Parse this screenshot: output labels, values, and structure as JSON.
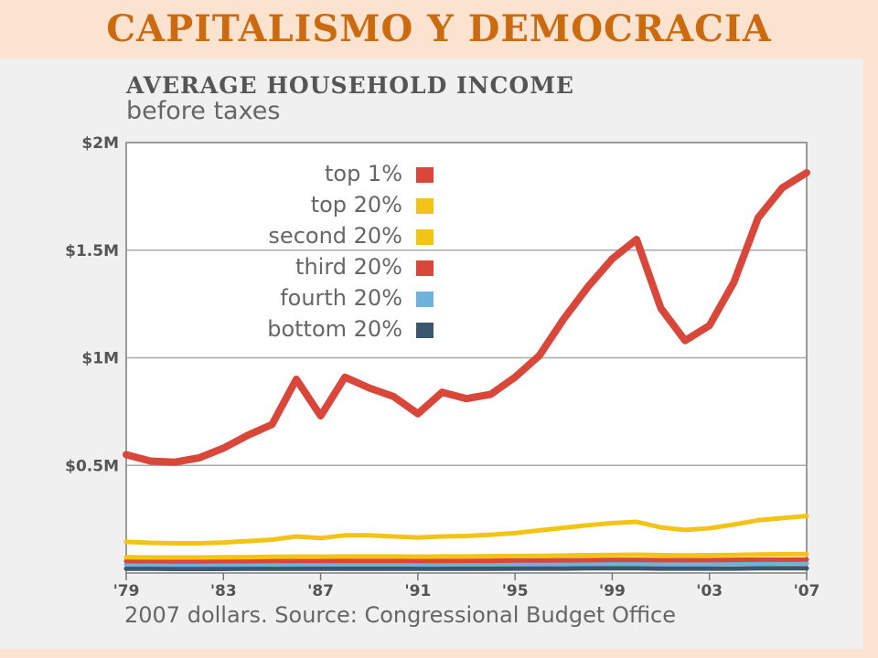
{
  "slide_title": "CAPITALISMO Y DEMOCRACIA",
  "chart_data": {
    "type": "line",
    "title": "AVERAGE HOUSEHOLD INCOME",
    "subtitle": "before taxes",
    "note": "2007 dollars. Source: Congressional Budget Office",
    "xlim": [
      1979,
      2007
    ],
    "ylim": [
      0,
      2000000
    ],
    "y_ticks": [
      {
        "value": 500000,
        "label": "$0.5M"
      },
      {
        "value": 1000000,
        "label": "$1M"
      },
      {
        "value": 1500000,
        "label": "$1.5M"
      },
      {
        "value": 2000000,
        "label": "$2M"
      }
    ],
    "x_ticks": [
      {
        "value": 1979,
        "label": "'79"
      },
      {
        "value": 1983,
        "label": "'83"
      },
      {
        "value": 1987,
        "label": "'87"
      },
      {
        "value": 1991,
        "label": "'91"
      },
      {
        "value": 1995,
        "label": "'95"
      },
      {
        "value": 1999,
        "label": "'99"
      },
      {
        "value": 2003,
        "label": "'03"
      },
      {
        "value": 2007,
        "label": "'07"
      }
    ],
    "grid": true,
    "legend_position": "top-right",
    "x": [
      1979,
      1980,
      1981,
      1982,
      1983,
      1984,
      1985,
      1986,
      1987,
      1988,
      1989,
      1990,
      1991,
      1992,
      1993,
      1994,
      1995,
      1996,
      1997,
      1998,
      1999,
      2000,
      2001,
      2002,
      2003,
      2004,
      2005,
      2006,
      2007
    ],
    "series": [
      {
        "name": "top 1%",
        "color": "#d9473a",
        "values": [
          550000,
          520000,
          515000,
          535000,
          580000,
          640000,
          690000,
          900000,
          730000,
          910000,
          860000,
          820000,
          740000,
          840000,
          810000,
          830000,
          910000,
          1010000,
          1180000,
          1330000,
          1460000,
          1550000,
          1230000,
          1080000,
          1150000,
          1350000,
          1650000,
          1790000,
          1860000
        ]
      },
      {
        "name": "top 20%",
        "color": "#f3c316",
        "values": [
          145000,
          140000,
          138000,
          138000,
          142000,
          148000,
          155000,
          170000,
          162000,
          175000,
          175000,
          170000,
          165000,
          170000,
          172000,
          178000,
          185000,
          198000,
          210000,
          222000,
          232000,
          238000,
          212000,
          200000,
          208000,
          225000,
          245000,
          255000,
          265000
        ]
      },
      {
        "name": "second 20%",
        "color": "#f3c316",
        "values": [
          73000,
          72000,
          72000,
          72000,
          73000,
          74000,
          75000,
          76000,
          76000,
          77000,
          77000,
          77000,
          76000,
          77000,
          77000,
          78000,
          79000,
          80000,
          81000,
          83000,
          84000,
          85000,
          83000,
          82000,
          83000,
          84000,
          86000,
          87000,
          88000
        ]
      },
      {
        "name": "third 20%",
        "color": "#d9473a",
        "values": [
          55000,
          55000,
          54000,
          54000,
          55000,
          55000,
          56000,
          56000,
          56000,
          57000,
          57000,
          57000,
          56000,
          56000,
          57000,
          57000,
          58000,
          58000,
          59000,
          60000,
          61000,
          61000,
          60000,
          60000,
          60000,
          61000,
          62000,
          62000,
          63000
        ]
      },
      {
        "name": "fourth 20%",
        "color": "#6fb2dc",
        "values": [
          40000,
          40000,
          39000,
          39000,
          39000,
          40000,
          40000,
          40000,
          41000,
          41000,
          41000,
          41000,
          40000,
          40000,
          41000,
          41000,
          42000,
          42000,
          43000,
          43000,
          44000,
          44000,
          43000,
          43000,
          43000,
          44000,
          44000,
          45000,
          45000
        ]
      },
      {
        "name": "bottom 20%",
        "color": "#3c566e",
        "values": [
          20000,
          20000,
          19000,
          19000,
          19000,
          20000,
          20000,
          20000,
          20000,
          20000,
          20000,
          20000,
          20000,
          20000,
          20000,
          20000,
          21000,
          21000,
          21000,
          22000,
          22000,
          22000,
          21000,
          21000,
          21000,
          21000,
          22000,
          22000,
          22000
        ]
      }
    ]
  }
}
